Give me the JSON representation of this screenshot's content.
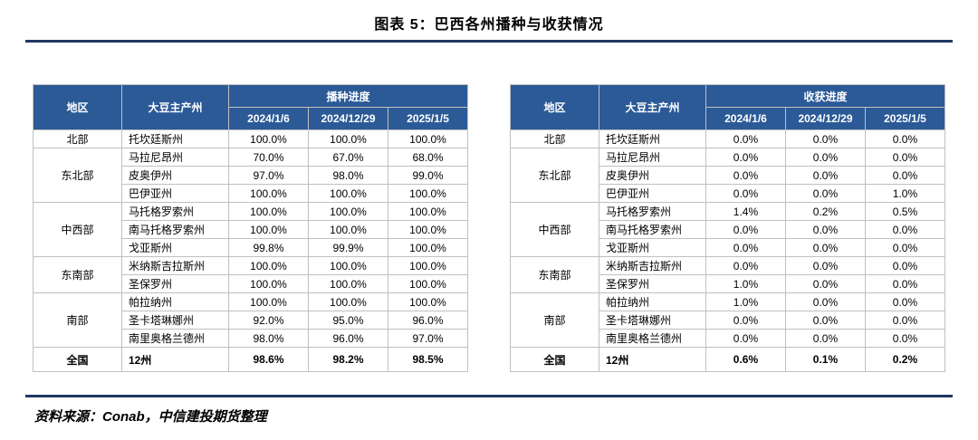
{
  "title": "图表 5：巴西各州播种与收获情况",
  "source": "资料来源：Conab，中信建投期货整理",
  "colors": {
    "header_bg": "#2B5A97",
    "header_text": "#FFFFFF",
    "rule": "#1F3864",
    "border": "#C0C0C0",
    "text": "#000000",
    "background": "#FFFFFF"
  },
  "chart_data": [
    {
      "type": "table",
      "title": "播种进度",
      "headers": {
        "region": "地区",
        "state": "大豆主产州",
        "progress": "播种进度"
      },
      "dates": [
        "2024/1/6",
        "2024/12/29",
        "2025/1/5"
      ],
      "groups": [
        {
          "region": "北部",
          "rows": [
            {
              "state": "托坎廷斯州",
              "values": [
                "100.0%",
                "100.0%",
                "100.0%"
              ]
            }
          ]
        },
        {
          "region": "东北部",
          "rows": [
            {
              "state": "马拉尼昂州",
              "values": [
                "70.0%",
                "67.0%",
                "68.0%"
              ]
            },
            {
              "state": "皮奥伊州",
              "values": [
                "97.0%",
                "98.0%",
                "99.0%"
              ]
            },
            {
              "state": "巴伊亚州",
              "values": [
                "100.0%",
                "100.0%",
                "100.0%"
              ]
            }
          ]
        },
        {
          "region": "中西部",
          "rows": [
            {
              "state": "马托格罗索州",
              "values": [
                "100.0%",
                "100.0%",
                "100.0%"
              ]
            },
            {
              "state": "南马托格罗索州",
              "values": [
                "100.0%",
                "100.0%",
                "100.0%"
              ]
            },
            {
              "state": "戈亚斯州",
              "values": [
                "99.8%",
                "99.9%",
                "100.0%"
              ]
            }
          ]
        },
        {
          "region": "东南部",
          "rows": [
            {
              "state": "米纳斯吉拉斯州",
              "values": [
                "100.0%",
                "100.0%",
                "100.0%"
              ]
            },
            {
              "state": "圣保罗州",
              "values": [
                "100.0%",
                "100.0%",
                "100.0%"
              ]
            }
          ]
        },
        {
          "region": "南部",
          "rows": [
            {
              "state": "帕拉纳州",
              "values": [
                "100.0%",
                "100.0%",
                "100.0%"
              ]
            },
            {
              "state": "圣卡塔琳娜州",
              "values": [
                "92.0%",
                "95.0%",
                "96.0%"
              ]
            },
            {
              "state": "南里奥格兰德州",
              "values": [
                "98.0%",
                "96.0%",
                "97.0%"
              ]
            }
          ]
        }
      ],
      "total": {
        "region": "全国",
        "state": "12州",
        "values": [
          "98.6%",
          "98.2%",
          "98.5%"
        ]
      }
    },
    {
      "type": "table",
      "title": "收获进度",
      "headers": {
        "region": "地区",
        "state": "大豆主产州",
        "progress": "收获进度"
      },
      "dates": [
        "2024/1/6",
        "2024/12/29",
        "2025/1/5"
      ],
      "groups": [
        {
          "region": "北部",
          "rows": [
            {
              "state": "托坎廷斯州",
              "values": [
                "0.0%",
                "0.0%",
                "0.0%"
              ]
            }
          ]
        },
        {
          "region": "东北部",
          "rows": [
            {
              "state": "马拉尼昂州",
              "values": [
                "0.0%",
                "0.0%",
                "0.0%"
              ]
            },
            {
              "state": "皮奥伊州",
              "values": [
                "0.0%",
                "0.0%",
                "0.0%"
              ]
            },
            {
              "state": "巴伊亚州",
              "values": [
                "0.0%",
                "0.0%",
                "1.0%"
              ]
            }
          ]
        },
        {
          "region": "中西部",
          "rows": [
            {
              "state": "马托格罗索州",
              "values": [
                "1.4%",
                "0.2%",
                "0.5%"
              ]
            },
            {
              "state": "南马托格罗索州",
              "values": [
                "0.0%",
                "0.0%",
                "0.0%"
              ]
            },
            {
              "state": "戈亚斯州",
              "values": [
                "0.0%",
                "0.0%",
                "0.0%"
              ]
            }
          ]
        },
        {
          "region": "东南部",
          "rows": [
            {
              "state": "米纳斯吉拉斯州",
              "values": [
                "0.0%",
                "0.0%",
                "0.0%"
              ]
            },
            {
              "state": "圣保罗州",
              "values": [
                "1.0%",
                "0.0%",
                "0.0%"
              ]
            }
          ]
        },
        {
          "region": "南部",
          "rows": [
            {
              "state": "帕拉纳州",
              "values": [
                "1.0%",
                "0.0%",
                "0.0%"
              ]
            },
            {
              "state": "圣卡塔琳娜州",
              "values": [
                "0.0%",
                "0.0%",
                "0.0%"
              ]
            },
            {
              "state": "南里奥格兰德州",
              "values": [
                "0.0%",
                "0.0%",
                "0.0%"
              ]
            }
          ]
        }
      ],
      "total": {
        "region": "全国",
        "state": "12州",
        "values": [
          "0.6%",
          "0.1%",
          "0.2%"
        ]
      }
    }
  ]
}
